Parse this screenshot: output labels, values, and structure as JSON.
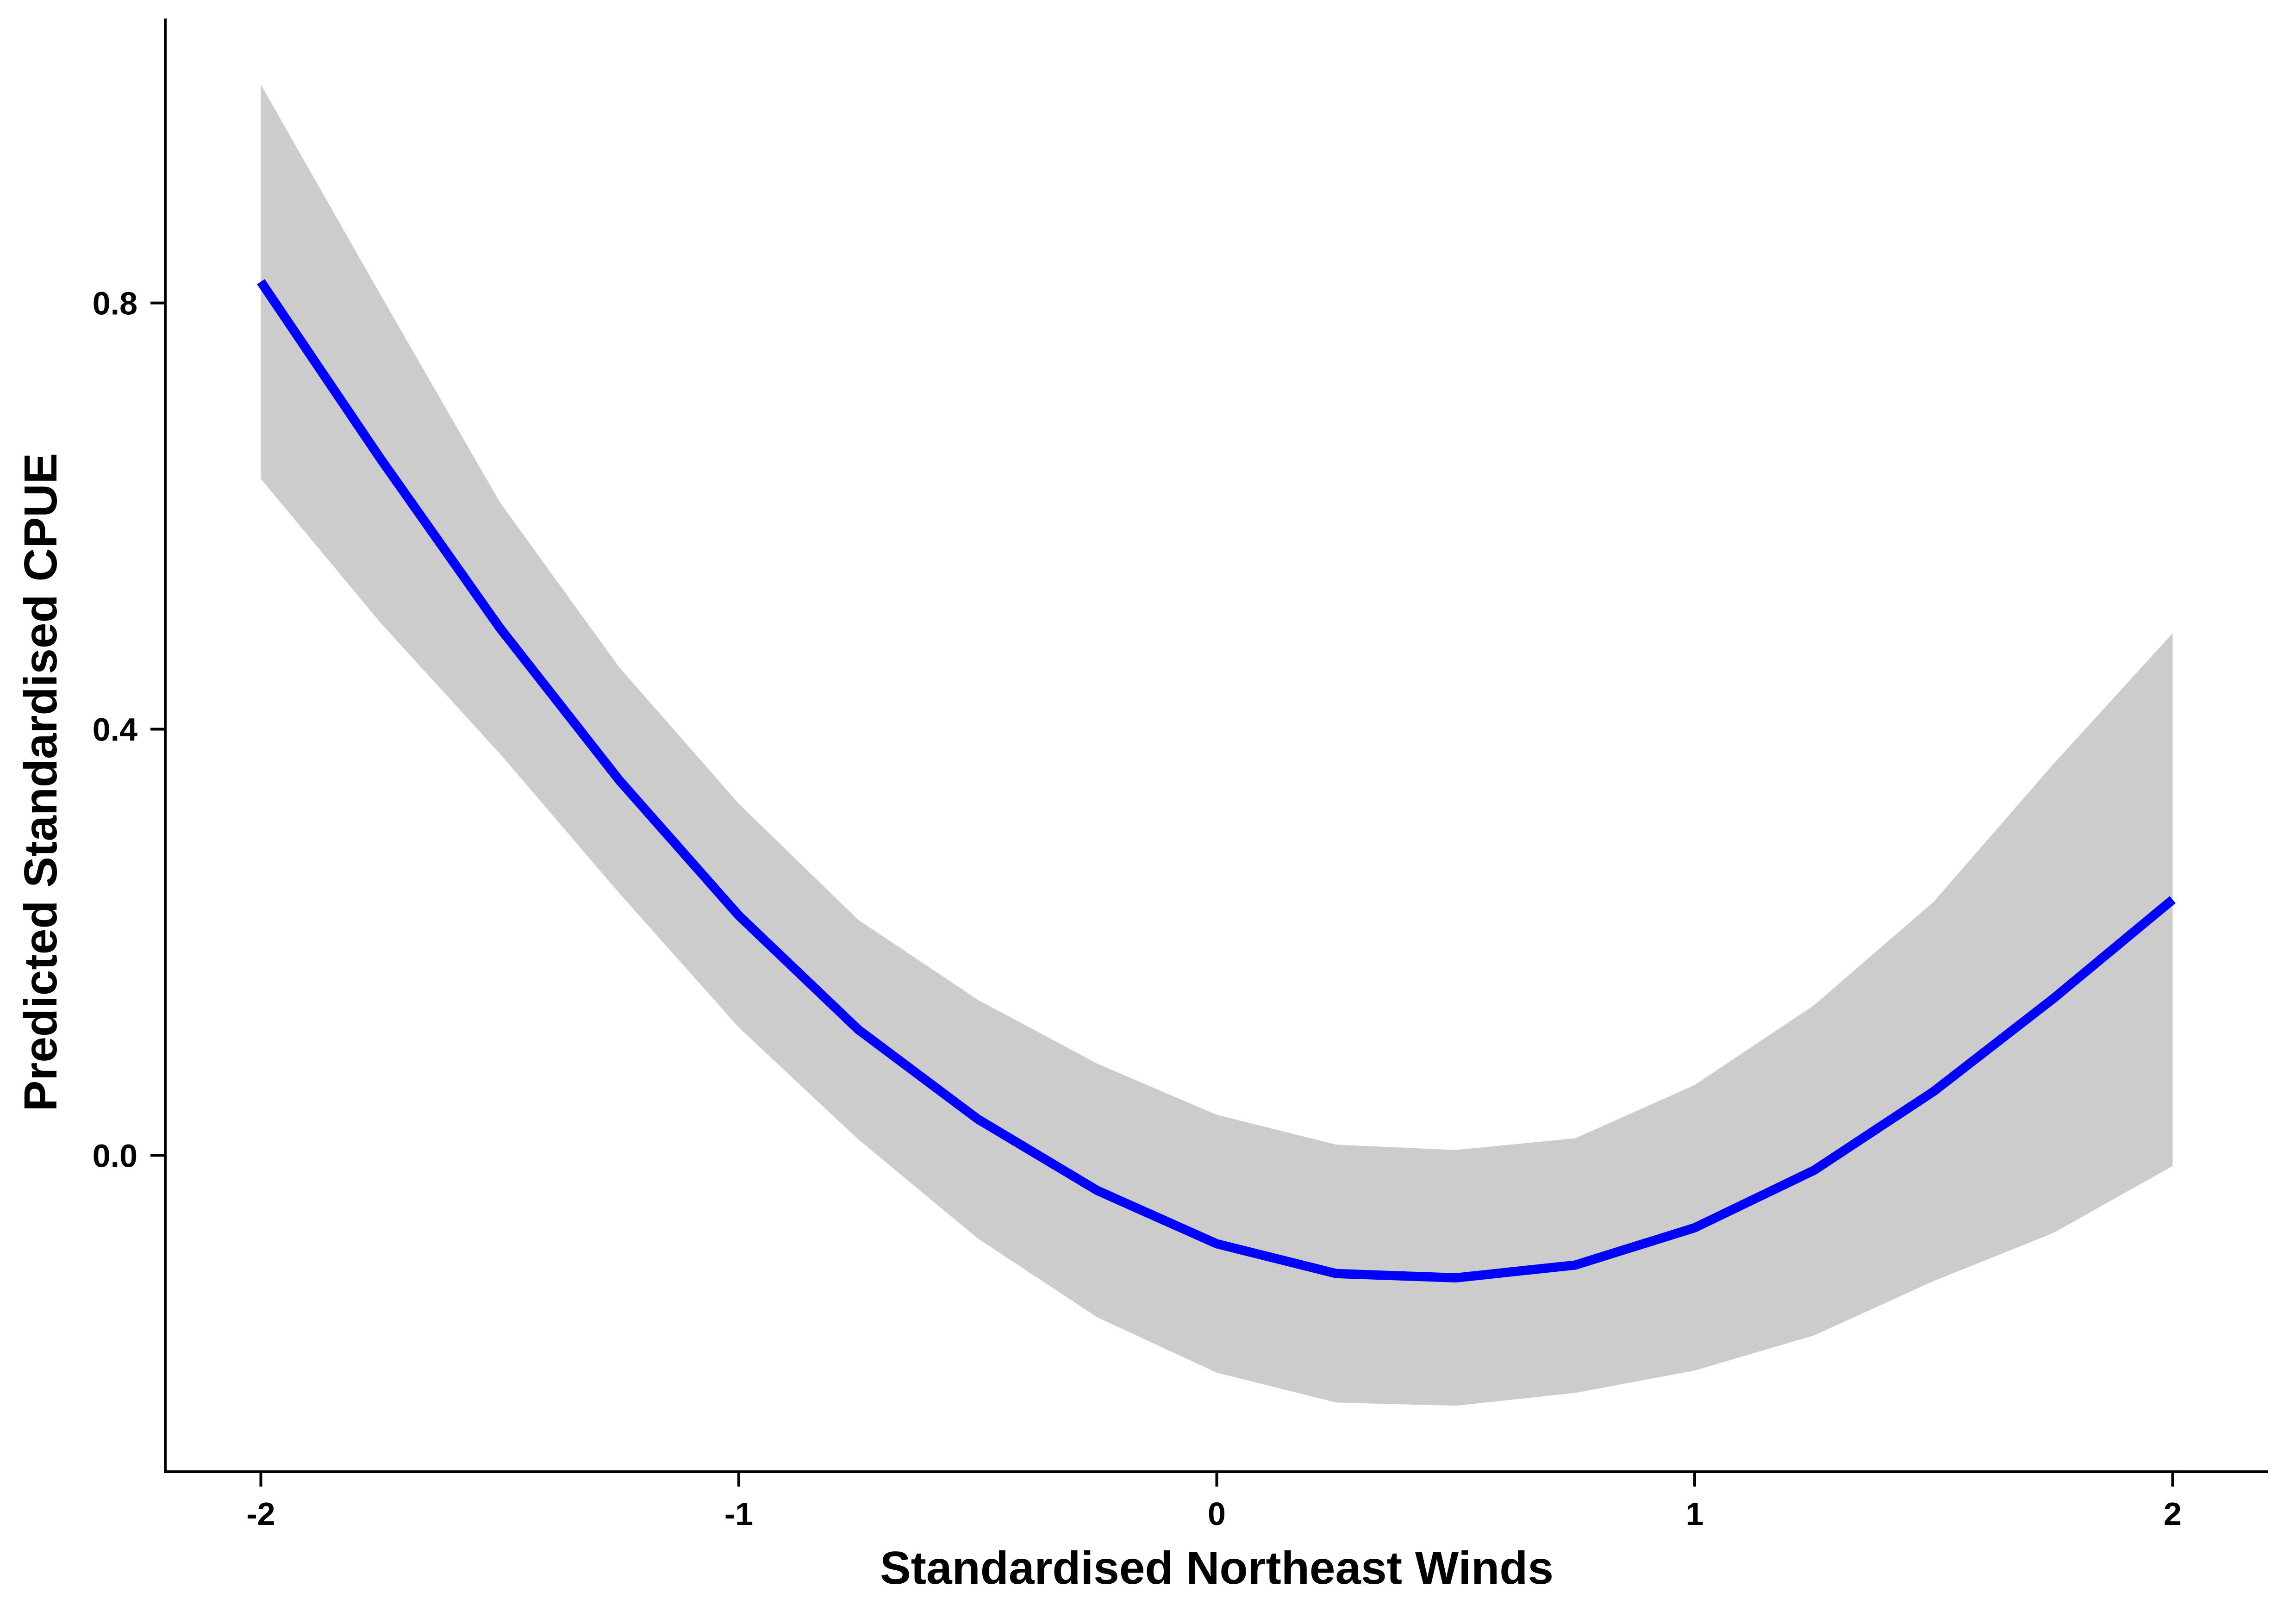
{
  "chart_data": {
    "type": "line",
    "title": "",
    "xlabel": "Standardised Northeast Winds",
    "ylabel": "Predicted Standardised CPUE",
    "xlim": [
      -2.2,
      2.2
    ],
    "ylim": [
      -0.297,
      1.067
    ],
    "x_ticks": [
      -2,
      -1,
      0,
      1,
      2
    ],
    "x_tick_labels": [
      "-2",
      "-1",
      "0",
      "1",
      "2"
    ],
    "y_ticks": [
      0.0,
      0.4,
      0.8
    ],
    "y_tick_labels": [
      "0.0",
      "0.4",
      "0.8"
    ],
    "grid": false,
    "legend": "none",
    "colors": {
      "line": "#0000ff",
      "ribbon": "#cccccc",
      "axis": "#000000"
    },
    "series": [
      {
        "x": [
          -2.0,
          -1.75,
          -1.5,
          -1.25,
          -1.0,
          -0.75,
          -0.5,
          -0.25,
          0.0,
          0.25,
          0.5,
          0.75,
          1.0,
          1.25,
          1.5,
          1.75,
          2.0
        ],
        "y": [
          0.82,
          0.654,
          0.495,
          0.352,
          0.225,
          0.118,
          0.034,
          -0.033,
          -0.083,
          -0.111,
          -0.115,
          -0.103,
          -0.068,
          -0.014,
          0.06,
          0.147,
          0.24
        ],
        "lower": [
          0.635,
          0.5,
          0.377,
          0.246,
          0.12,
          0.015,
          -0.078,
          -0.152,
          -0.204,
          -0.232,
          -0.235,
          -0.223,
          -0.202,
          -0.169,
          -0.118,
          -0.073,
          -0.01
        ],
        "upper": [
          1.005,
          0.808,
          0.613,
          0.458,
          0.33,
          0.221,
          0.146,
          0.086,
          0.038,
          0.01,
          0.005,
          0.016,
          0.066,
          0.141,
          0.238,
          0.367,
          0.49
        ]
      }
    ]
  }
}
